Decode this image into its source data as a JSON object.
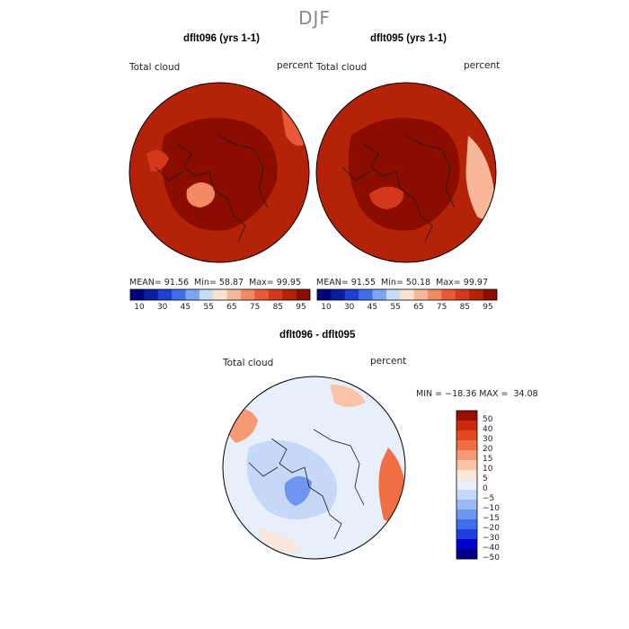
{
  "figure": {
    "season_title": "DJF"
  },
  "panels": [
    {
      "title": "dflt096 (yrs 1-1)",
      "left_label": "Total cloud",
      "right_label": "percent",
      "stats": {
        "mean_label": "MEAN=",
        "mean": "91.56",
        "min_label": "Min=",
        "min": "58.87",
        "max_label": "Max=",
        "max": "99.95"
      }
    },
    {
      "title": "dflt095 (yrs 1-1)",
      "left_label": "Total cloud",
      "right_label": "percent",
      "stats": {
        "mean_label": "MEAN=",
        "mean": "91.55",
        "min_label": "Min=",
        "min": "50.18",
        "max_label": "Max=",
        "max": "99.97"
      }
    },
    {
      "title": "dflt096 - dflt095",
      "left_label": "Total cloud",
      "right_label": "percent",
      "stats": {
        "range_text": "MIN = −18.36 MAX =  34.08"
      }
    }
  ],
  "colors": {
    "land_outline": "#1a1a1a",
    "plot_border": "#000000",
    "abs_scale": [
      "#00007f",
      "#0a1fa0",
      "#1e3fd0",
      "#3f6fe8",
      "#7aa5f0",
      "#c8dcf7",
      "#fde2d2",
      "#f9b79a",
      "#f48a64",
      "#e85a35",
      "#d4381a",
      "#b42208",
      "#8a0d00"
    ],
    "diff_scale": [
      "#00008a",
      "#0000cd",
      "#1e3fe0",
      "#3f6fe8",
      "#6e95ef",
      "#9cb9f3",
      "#c6d8f7",
      "#e7effb",
      "#fde6da",
      "#fac4a8",
      "#f59a74",
      "#ef6e44",
      "#e44822",
      "#cc2a0a",
      "#9a0e00"
    ]
  },
  "chart_data": [
    {
      "type": "heatmap",
      "title": "dflt096 (yrs 1-1)",
      "projection": "polar stereographic (north)",
      "variable": "Total cloud",
      "units": "percent",
      "mean": 91.56,
      "min": 58.87,
      "max": 99.95,
      "colorbar": {
        "orientation": "horizontal",
        "tick_labels": [
          "10",
          "30",
          "45",
          "55",
          "65",
          "75",
          "85",
          "95"
        ]
      }
    },
    {
      "type": "heatmap",
      "title": "dflt095 (yrs 1-1)",
      "projection": "polar stereographic (north)",
      "variable": "Total cloud",
      "units": "percent",
      "mean": 91.55,
      "min": 50.18,
      "max": 99.97,
      "colorbar": {
        "orientation": "horizontal",
        "tick_labels": [
          "10",
          "30",
          "45",
          "55",
          "65",
          "75",
          "85",
          "95"
        ]
      }
    },
    {
      "type": "heatmap",
      "title": "dflt096 - dflt095",
      "projection": "polar stereographic (north)",
      "variable": "Total cloud",
      "units": "percent",
      "min": -18.36,
      "max": 34.08,
      "colorbar": {
        "orientation": "vertical",
        "tick_labels": [
          "50",
          "40",
          "30",
          "20",
          "15",
          "10",
          "5",
          "0",
          "−5",
          "−10",
          "−15",
          "−20",
          "−30",
          "−40",
          "−50"
        ]
      }
    }
  ]
}
